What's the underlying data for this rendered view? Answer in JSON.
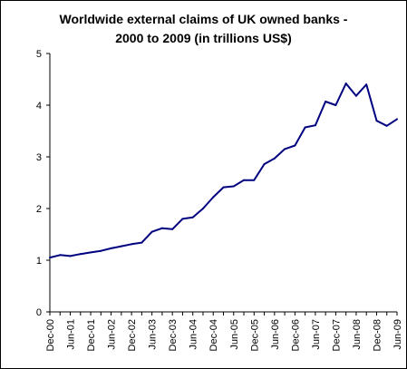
{
  "chart_data": {
    "type": "line",
    "title_lines": [
      "Worldwide external claims of UK owned banks -",
      "2000 to 2009 (in trillions US$)"
    ],
    "xlabel": "",
    "ylabel": "",
    "ylim": [
      0,
      5
    ],
    "yticks": [
      "0",
      "1",
      "2",
      "3",
      "4",
      "5"
    ],
    "xtick_labels": [
      "Dec-00",
      "Jun-01",
      "Dec-01",
      "Jun-02",
      "Dec-02",
      "Jun-03",
      "Dec-03",
      "Jun-04",
      "Dec-04",
      "Jun-05",
      "Dec-05",
      "Jun-06",
      "Dec-06",
      "Jun-07",
      "Dec-07",
      "Jun-08",
      "Dec-08",
      "Jun-09"
    ],
    "grid": false,
    "legend": "none",
    "series": [
      {
        "color": "#000080",
        "x": [
          "Dec-00",
          "Mar-01",
          "Jun-01",
          "Sep-01",
          "Dec-01",
          "Mar-02",
          "Jun-02",
          "Sep-02",
          "Dec-02",
          "Mar-03",
          "Jun-03",
          "Sep-03",
          "Dec-03",
          "Mar-04",
          "Jun-04",
          "Sep-04",
          "Dec-04",
          "Mar-05",
          "Jun-05",
          "Sep-05",
          "Dec-05",
          "Mar-06",
          "Jun-06",
          "Sep-06",
          "Dec-06",
          "Mar-07",
          "Jun-07",
          "Sep-07",
          "Dec-07",
          "Mar-08",
          "Jun-08",
          "Sep-08",
          "Dec-08",
          "Mar-09",
          "Jun-09"
        ],
        "values": [
          1.05,
          1.1,
          1.08,
          1.12,
          1.15,
          1.18,
          1.23,
          1.27,
          1.31,
          1.34,
          1.55,
          1.62,
          1.6,
          1.8,
          1.83,
          2.0,
          2.22,
          2.41,
          2.43,
          2.55,
          2.55,
          2.86,
          2.97,
          3.15,
          3.22,
          3.57,
          3.61,
          4.07,
          4.0,
          4.42,
          4.18,
          4.4,
          3.7,
          3.6,
          3.73
        ]
      }
    ]
  }
}
